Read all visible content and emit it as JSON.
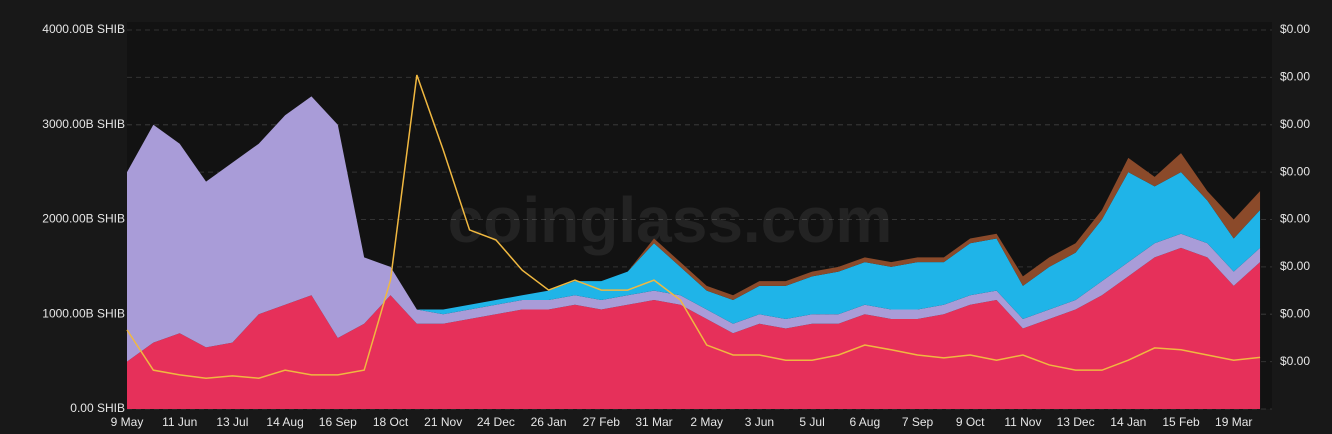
{
  "chart_data": {
    "type": "stacked-area",
    "watermark": "coinglass.com",
    "categories": [
      "9 May",
      null,
      "11 Jun",
      null,
      "13 Jul",
      null,
      "14 Aug",
      null,
      "16 Sep",
      null,
      "18 Oct",
      null,
      "21 Nov",
      null,
      "24 Dec",
      null,
      "26 Jan",
      null,
      "27 Feb",
      null,
      "31 Mar",
      null,
      "2 May",
      null,
      "3 Jun",
      null,
      "5 Jul",
      null,
      "6 Aug",
      null,
      "7 Sep",
      null,
      "9 Oct",
      null,
      "11 Nov",
      null,
      "13 Dec",
      null,
      "14 Jan",
      null,
      "15 Feb",
      null,
      "19 Mar",
      null
    ],
    "series": [
      {
        "color": "#e6305a",
        "values": [
          500,
          700,
          800,
          650,
          700,
          1000,
          1100,
          1200,
          750,
          900,
          1200,
          900,
          900,
          950,
          1000,
          1050,
          1050,
          1100,
          1050,
          1100,
          1150,
          1100,
          950,
          800,
          900,
          850,
          900,
          900,
          1000,
          950,
          950,
          1000,
          1100,
          1150,
          850,
          950,
          1050,
          1200,
          1400,
          1600,
          1700,
          1600,
          1300,
          1550
        ]
      },
      {
        "color": "#a99cd8",
        "values": [
          2000,
          2300,
          2000,
          1750,
          1900,
          1800,
          2000,
          2100,
          2250,
          700,
          300,
          150,
          100,
          100,
          100,
          100,
          100,
          100,
          100,
          100,
          100,
          100,
          100,
          100,
          100,
          100,
          100,
          100,
          100,
          100,
          100,
          100,
          100,
          100,
          100,
          100,
          100,
          150,
          150,
          150,
          150,
          150,
          150,
          150
        ]
      },
      {
        "color": "#1fb4e8",
        "values": [
          0,
          0,
          0,
          0,
          0,
          0,
          0,
          0,
          0,
          0,
          0,
          0,
          50,
          50,
          50,
          50,
          100,
          150,
          200,
          250,
          500,
          300,
          200,
          250,
          300,
          350,
          400,
          450,
          450,
          450,
          500,
          450,
          550,
          550,
          350,
          450,
          500,
          650,
          950,
          600,
          650,
          450,
          350,
          400
        ]
      },
      {
        "color": "#8b4a2a",
        "values": [
          0,
          0,
          0,
          0,
          0,
          0,
          0,
          0,
          0,
          0,
          0,
          0,
          0,
          0,
          0,
          0,
          0,
          0,
          0,
          0,
          50,
          50,
          50,
          50,
          50,
          50,
          50,
          50,
          50,
          50,
          50,
          50,
          50,
          50,
          100,
          100,
          100,
          100,
          150,
          100,
          200,
          100,
          200,
          200
        ]
      },
      {
        "color": "#f0b840",
        "axis": "y2",
        "values": [
          1.67e-05,
          8.2e-06,
          7.2e-06,
          6.5e-06,
          7e-06,
          6.5e-06,
          8.2e-06,
          7.2e-06,
          7.2e-06,
          8.2e-06,
          2.72e-05,
          7.05e-05,
          5.47e-05,
          3.78e-05,
          3.57e-05,
          2.93e-05,
          2.51e-05,
          2.72e-05,
          2.51e-05,
          2.51e-05,
          2.72e-05,
          2.3e-05,
          1.35e-05,
          1.14e-05,
          1.14e-05,
          1.03e-05,
          1.03e-05,
          1.14e-05,
          1.35e-05,
          1.25e-05,
          1.14e-05,
          1.08e-05,
          1.14e-05,
          1.03e-05,
          1.14e-05,
          9.3e-06,
          8.2e-06,
          8.2e-06,
          1.03e-05,
          1.29e-05,
          1.25e-05,
          1.14e-05,
          1.03e-05,
          1.09e-05
        ]
      }
    ],
    "ylim": [
      0,
      4000
    ],
    "yticks": [
      {
        "value": 0,
        "label": "0.00 SHIB"
      },
      {
        "value": 1000,
        "label": "1000.00B SHIB"
      },
      {
        "value": 2000,
        "label": "2000.00B SHIB"
      },
      {
        "value": 3000,
        "label": "3000.00B SHIB"
      },
      {
        "value": 4000,
        "label": "4000.00B SHIB"
      }
    ],
    "y2lim": [
      0,
      8e-05
    ],
    "y2ticks": [
      {
        "value": 1e-05,
        "label": "$0.00"
      },
      {
        "value": 2e-05,
        "label": "$0.00"
      },
      {
        "value": 3e-05,
        "label": "$0.00"
      },
      {
        "value": 4e-05,
        "label": "$0.00"
      },
      {
        "value": 5e-05,
        "label": "$0.00"
      },
      {
        "value": 6e-05,
        "label": "$0.00"
      },
      {
        "value": 7e-05,
        "label": "$0.00"
      },
      {
        "value": 8e-05,
        "label": "$0.00"
      }
    ],
    "grid": true
  }
}
